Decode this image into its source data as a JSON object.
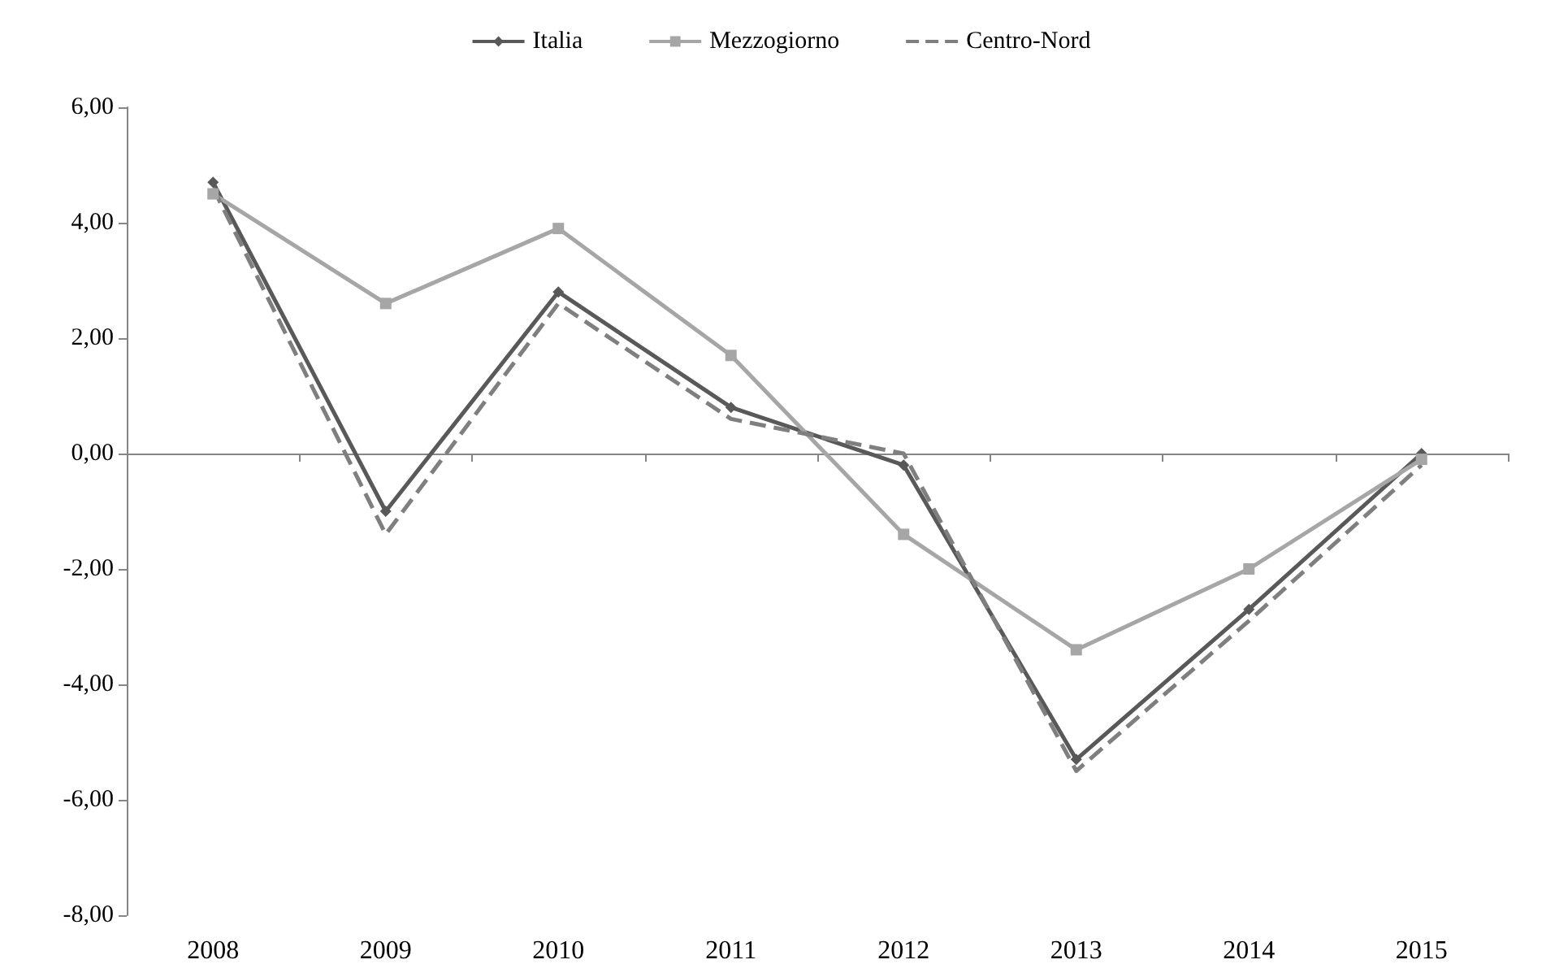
{
  "chart_data": {
    "type": "line",
    "categories": [
      "2008",
      "2009",
      "2010",
      "2011",
      "2012",
      "2013",
      "2014",
      "2015"
    ],
    "series": [
      {
        "name": "Italia",
        "color": "#595959",
        "marker": "diamond",
        "line_style": "solid",
        "values": [
          4.7,
          -1.0,
          2.8,
          0.8,
          -0.2,
          -5.3,
          -2.7,
          0.0
        ]
      },
      {
        "name": "Mezzogiorno",
        "color": "#a6a6a6",
        "marker": "square",
        "line_style": "solid",
        "values": [
          4.5,
          2.6,
          3.9,
          1.7,
          -1.4,
          -3.4,
          -2.0,
          -0.1
        ]
      },
      {
        "name": "Centro-Nord",
        "color": "#7f7f7f",
        "marker": "none",
        "line_style": "dashed",
        "values": [
          4.6,
          -1.4,
          2.6,
          0.6,
          0.0,
          -5.5,
          -2.9,
          -0.2
        ]
      }
    ],
    "ylim": [
      -8,
      6
    ],
    "yticks": [
      {
        "value": -8,
        "label": "-8,00"
      },
      {
        "value": -6,
        "label": "-6,00"
      },
      {
        "value": -4,
        "label": "-4,00"
      },
      {
        "value": -2,
        "label": "-2,00"
      },
      {
        "value": 0,
        "label": "0,00"
      },
      {
        "value": 2,
        "label": "2,00"
      },
      {
        "value": 4,
        "label": "4,00"
      },
      {
        "value": 6,
        "label": "6,00"
      }
    ],
    "legend": "top"
  }
}
